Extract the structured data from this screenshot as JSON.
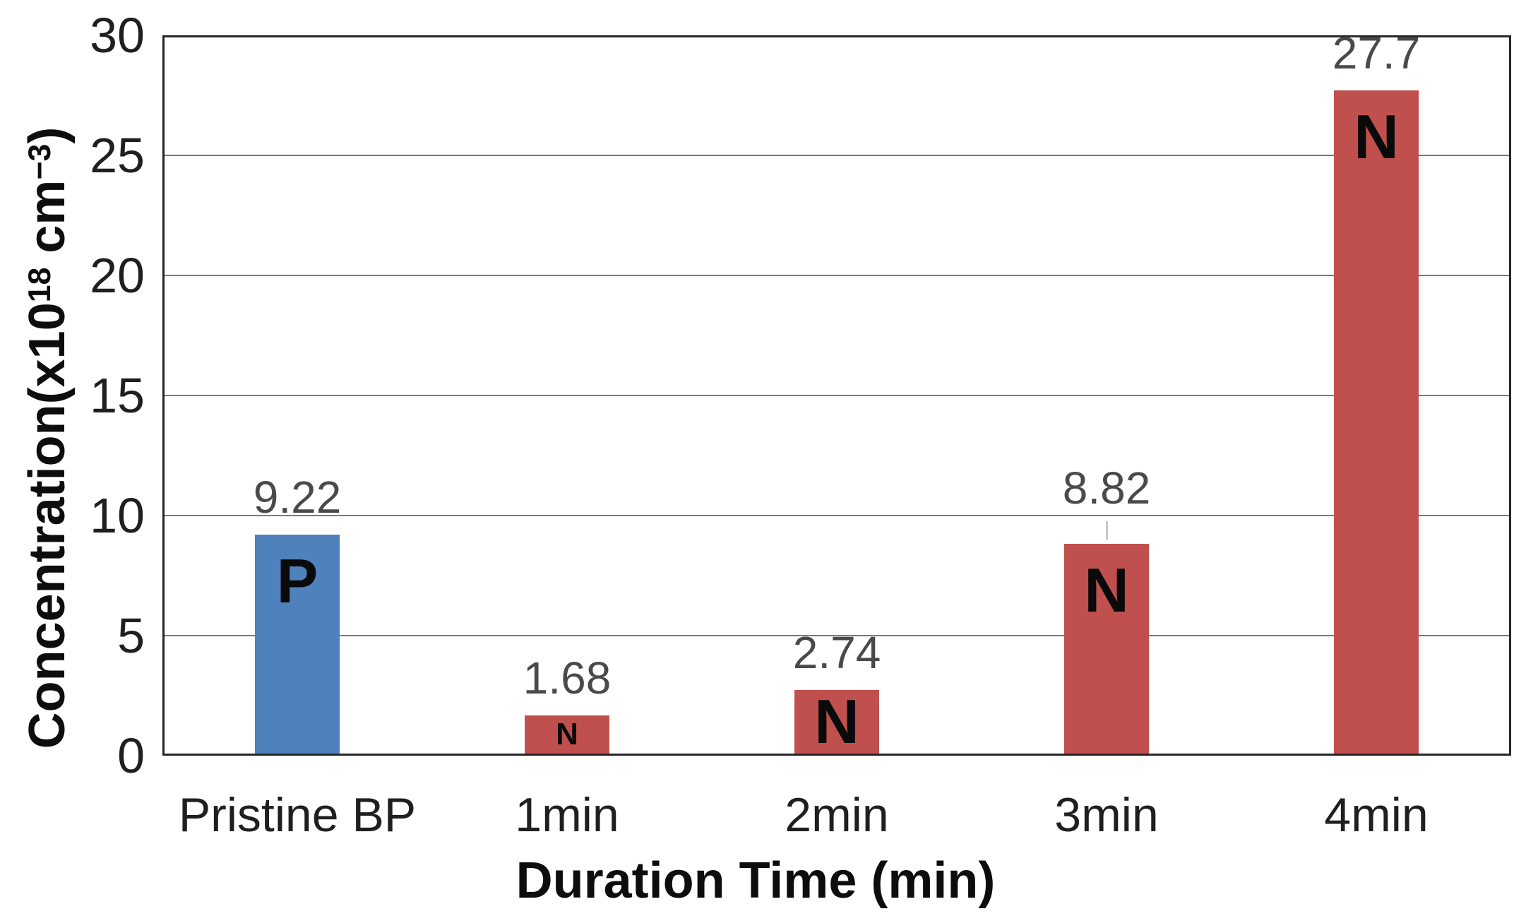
{
  "chart_data": {
    "type": "bar",
    "title": "",
    "xlabel": "Duration Time (min)",
    "ylabel": "Concentration(x10¹⁸ cm⁻³)",
    "ylabel_parts": {
      "p1": "Concentration(x10",
      "sup1": "18",
      "p2": " cm",
      "sup2": "−3",
      "p3": ")"
    },
    "categories": [
      "Pristine BP",
      "1min",
      "2min",
      "3min",
      "4min"
    ],
    "values": [
      9.22,
      1.68,
      2.74,
      8.82,
      27.7
    ],
    "value_labels": [
      "9.22",
      "1.68",
      "2.74",
      "8.82",
      "27.7"
    ],
    "bar_letters": [
      "P",
      "N",
      "N",
      "N",
      "N"
    ],
    "bar_colors": [
      "#4f81bd",
      "#c0504d",
      "#c0504d",
      "#c0504d",
      "#c0504d"
    ],
    "label_leaders": [
      false,
      false,
      false,
      true,
      false
    ],
    "ylim": [
      0,
      30
    ],
    "yticks": [
      0,
      5,
      10,
      15,
      20,
      25,
      30
    ],
    "grid": true,
    "legend": "none"
  },
  "colors": {
    "bar_blue": "#4f81bd",
    "bar_red": "#c0504d",
    "axis_line": "#262626",
    "gridline": "#7a7a7a",
    "tick_label": "#1f1f1f",
    "value_label": "#4a4a4a",
    "bar_letter": "#0a0a0a",
    "leader_line": "#c9c9c9",
    "background": "#ffffff"
  }
}
